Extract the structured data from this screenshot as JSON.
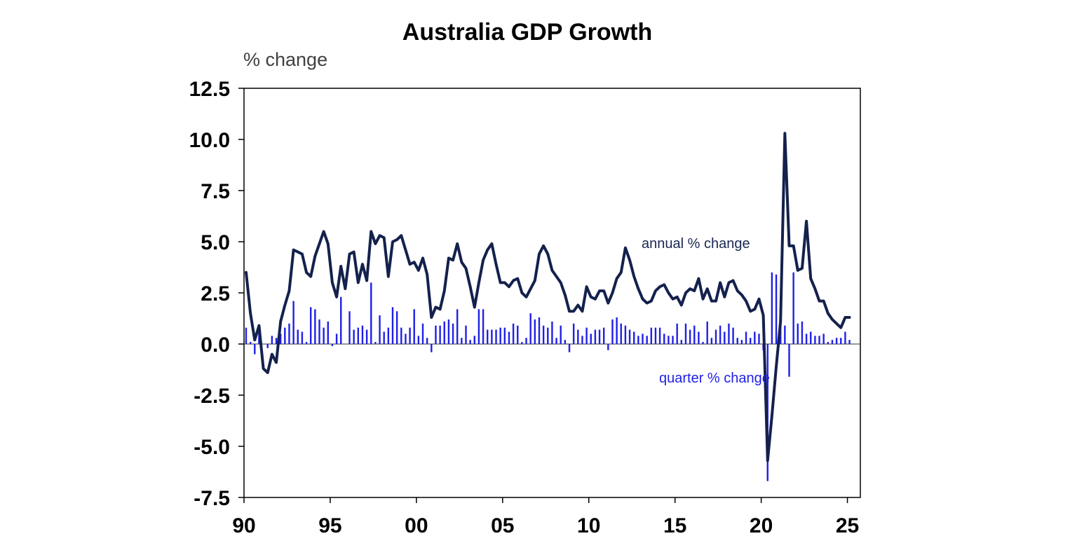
{
  "chart_data": {
    "type": "bar",
    "title": "Australia GDP Growth",
    "ylabel": "% change",
    "xlabel": "",
    "ylim": [
      -7.5,
      12.5
    ],
    "xlim": [
      1990.0,
      2025.75
    ],
    "grid": false,
    "legend": "none",
    "yticks": [
      12.5,
      10.0,
      7.5,
      5.0,
      2.5,
      0.0,
      -2.5,
      -5.0,
      -7.5
    ],
    "ytick_labels": [
      "12.5",
      "10.0",
      "7.5",
      "5.0",
      "2.5",
      "0.0",
      "-2.5",
      "-5.0",
      "-7.5"
    ],
    "xticks": [
      1990,
      1995,
      2000,
      2005,
      2010,
      2015,
      2020,
      2025
    ],
    "xtick_labels": [
      "90",
      "95",
      "00",
      "05",
      "10",
      "15",
      "20",
      "25"
    ],
    "colors": {
      "annual_line": "#14214d",
      "quarter_bars": "#1f1fe8",
      "axis": "#000000"
    },
    "annotations": {
      "annual": "annual % change",
      "quarter": "quarter % change"
    },
    "series": [
      {
        "name": "quarter % change",
        "type": "bar",
        "x": [
          1990.0,
          1990.25,
          1990.5,
          1990.75,
          1991.0,
          1991.25,
          1991.5,
          1991.75,
          1992.0,
          1992.25,
          1992.5,
          1992.75,
          1993.0,
          1993.25,
          1993.5,
          1993.75,
          1994.0,
          1994.25,
          1994.5,
          1994.75,
          1995.0,
          1995.25,
          1995.5,
          1995.75,
          1996.0,
          1996.25,
          1996.5,
          1996.75,
          1997.0,
          1997.25,
          1997.5,
          1997.75,
          1998.0,
          1998.25,
          1998.5,
          1998.75,
          1999.0,
          1999.25,
          1999.5,
          1999.75,
          2000.0,
          2000.25,
          2000.5,
          2000.75,
          2001.0,
          2001.25,
          2001.5,
          2001.75,
          2002.0,
          2002.25,
          2002.5,
          2002.75,
          2003.0,
          2003.25,
          2003.5,
          2003.75,
          2004.0,
          2004.25,
          2004.5,
          2004.75,
          2005.0,
          2005.25,
          2005.5,
          2005.75,
          2006.0,
          2006.25,
          2006.5,
          2006.75,
          2007.0,
          2007.25,
          2007.5,
          2007.75,
          2008.0,
          2008.25,
          2008.5,
          2008.75,
          2009.0,
          2009.25,
          2009.5,
          2009.75,
          2010.0,
          2010.25,
          2010.5,
          2010.75,
          2011.0,
          2011.25,
          2011.5,
          2011.75,
          2012.0,
          2012.25,
          2012.5,
          2012.75,
          2013.0,
          2013.25,
          2013.5,
          2013.75,
          2014.0,
          2014.25,
          2014.5,
          2014.75,
          2015.0,
          2015.25,
          2015.5,
          2015.75,
          2016.0,
          2016.25,
          2016.5,
          2016.75,
          2017.0,
          2017.25,
          2017.5,
          2017.75,
          2018.0,
          2018.25,
          2018.5,
          2018.75,
          2019.0,
          2019.25,
          2019.5,
          2019.75,
          2020.0,
          2020.25,
          2020.5,
          2020.75,
          2021.0,
          2021.25,
          2021.5,
          2021.75,
          2022.0,
          2022.25,
          2022.5,
          2022.75,
          2023.0,
          2023.25,
          2023.5,
          2023.75,
          2024.0,
          2024.25,
          2024.5,
          2024.75,
          2025.0
        ],
        "values": [
          0.8,
          0.1,
          -0.5,
          0.7,
          0.0,
          -0.2,
          0.4,
          0.3,
          0.5,
          0.8,
          1.0,
          2.1,
          0.7,
          0.6,
          0.1,
          1.8,
          1.7,
          1.2,
          0.8,
          1.1,
          -0.1,
          0.5,
          2.3,
          0.0,
          1.6,
          0.7,
          0.8,
          0.9,
          0.7,
          3.0,
          0.1,
          1.4,
          0.6,
          0.8,
          1.8,
          1.6,
          0.8,
          0.5,
          0.8,
          1.7,
          0.4,
          1.0,
          0.3,
          -0.4,
          0.9,
          0.9,
          1.1,
          1.2,
          1.0,
          1.7,
          0.3,
          0.9,
          0.2,
          0.4,
          1.7,
          1.7,
          0.7,
          0.7,
          0.7,
          0.8,
          0.8,
          0.6,
          1.0,
          0.9,
          0.1,
          0.3,
          1.5,
          1.2,
          1.3,
          0.9,
          0.8,
          1.1,
          0.3,
          0.9,
          0.2,
          -0.4,
          1.0,
          0.7,
          0.4,
          0.8,
          0.5,
          0.7,
          0.7,
          0.8,
          -0.3,
          1.2,
          1.3,
          1.0,
          0.9,
          0.7,
          0.6,
          0.4,
          0.5,
          0.4,
          0.8,
          0.8,
          0.8,
          0.5,
          0.4,
          0.4,
          1.0,
          0.2,
          1.0,
          0.7,
          0.9,
          0.6,
          0.1,
          1.1,
          0.3,
          0.7,
          0.9,
          0.6,
          1.0,
          0.8,
          0.3,
          0.2,
          0.6,
          0.3,
          0.6,
          0.5,
          -0.3,
          -6.7,
          3.5,
          3.4,
          2.0,
          0.9,
          -1.6,
          3.5,
          1.0,
          1.1,
          0.5,
          0.6,
          0.4,
          0.4,
          0.5,
          0.1,
          0.2,
          0.3,
          0.3,
          0.6,
          0.2
        ]
      },
      {
        "name": "annual % change",
        "type": "line",
        "x": [
          1990.0,
          1990.25,
          1990.5,
          1990.75,
          1991.0,
          1991.25,
          1991.5,
          1991.75,
          1992.0,
          1992.25,
          1992.5,
          1992.75,
          1993.0,
          1993.25,
          1993.5,
          1993.75,
          1994.0,
          1994.25,
          1994.5,
          1994.75,
          1995.0,
          1995.25,
          1995.5,
          1995.75,
          1996.0,
          1996.25,
          1996.5,
          1996.75,
          1997.0,
          1997.25,
          1997.5,
          1997.75,
          1998.0,
          1998.25,
          1998.5,
          1998.75,
          1999.0,
          1999.25,
          1999.5,
          1999.75,
          2000.0,
          2000.25,
          2000.5,
          2000.75,
          2001.0,
          2001.25,
          2001.5,
          2001.75,
          2002.0,
          2002.25,
          2002.5,
          2002.75,
          2003.0,
          2003.25,
          2003.5,
          2003.75,
          2004.0,
          2004.25,
          2004.5,
          2004.75,
          2005.0,
          2005.25,
          2005.5,
          2005.75,
          2006.0,
          2006.25,
          2006.5,
          2006.75,
          2007.0,
          2007.25,
          2007.5,
          2007.75,
          2008.0,
          2008.25,
          2008.5,
          2008.75,
          2009.0,
          2009.25,
          2009.5,
          2009.75,
          2010.0,
          2010.25,
          2010.5,
          2010.75,
          2011.0,
          2011.25,
          2011.5,
          2011.75,
          2012.0,
          2012.25,
          2012.5,
          2012.75,
          2013.0,
          2013.25,
          2013.5,
          2013.75,
          2014.0,
          2014.25,
          2014.5,
          2014.75,
          2015.0,
          2015.25,
          2015.5,
          2015.75,
          2016.0,
          2016.25,
          2016.5,
          2016.75,
          2017.0,
          2017.25,
          2017.5,
          2017.75,
          2018.0,
          2018.25,
          2018.5,
          2018.75,
          2019.0,
          2019.25,
          2019.5,
          2019.75,
          2020.0,
          2020.25,
          2020.5,
          2020.75,
          2021.0,
          2021.25,
          2021.5,
          2021.75,
          2022.0,
          2022.25,
          2022.5,
          2022.75,
          2023.0,
          2023.25,
          2023.5,
          2023.75,
          2024.0,
          2024.25,
          2024.5,
          2024.75,
          2025.0
        ],
        "values": [
          3.5,
          1.5,
          0.2,
          0.9,
          -1.2,
          -1.4,
          -0.5,
          -0.9,
          1.1,
          1.9,
          2.6,
          4.6,
          4.5,
          4.4,
          3.5,
          3.3,
          4.3,
          4.9,
          5.5,
          4.9,
          3.0,
          2.3,
          3.8,
          2.7,
          4.4,
          4.5,
          3.0,
          3.9,
          3.1,
          5.5,
          4.9,
          5.3,
          5.2,
          3.3,
          5.0,
          5.1,
          5.3,
          4.6,
          3.9,
          4.0,
          3.6,
          4.2,
          3.4,
          1.3,
          1.8,
          1.7,
          2.6,
          4.2,
          4.1,
          4.9,
          4.0,
          3.7,
          2.8,
          1.8,
          3.0,
          4.1,
          4.6,
          4.9,
          3.9,
          3.0,
          3.0,
          2.8,
          3.1,
          3.2,
          2.5,
          2.3,
          2.7,
          3.1,
          4.4,
          4.8,
          4.4,
          3.6,
          3.3,
          3.0,
          2.4,
          1.6,
          1.6,
          1.9,
          1.6,
          2.8,
          2.3,
          2.2,
          2.6,
          2.6,
          2.0,
          2.5,
          3.2,
          3.5,
          4.7,
          4.1,
          3.3,
          2.7,
          2.2,
          2.0,
          2.1,
          2.6,
          2.8,
          2.9,
          2.5,
          2.2,
          2.3,
          1.9,
          2.5,
          2.7,
          2.6,
          3.2,
          2.2,
          2.7,
          2.1,
          2.1,
          3.0,
          2.3,
          3.0,
          3.1,
          2.6,
          2.4,
          2.1,
          1.6,
          1.7,
          2.2,
          1.4,
          -5.7,
          -3.5,
          -1.1,
          1.1,
          10.3,
          4.8,
          4.8,
          3.6,
          3.7,
          6.0,
          3.2,
          2.7,
          2.1,
          2.1,
          1.5,
          1.2,
          1.0,
          0.8,
          1.3,
          1.3
        ]
      }
    ]
  }
}
